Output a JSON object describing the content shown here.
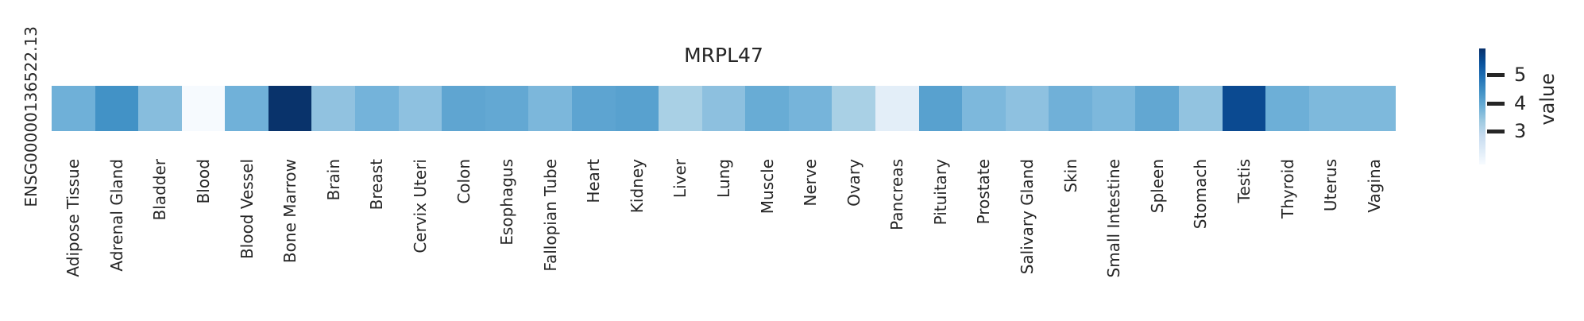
{
  "chart_data": {
    "type": "heatmap",
    "title": "MRPL47",
    "rows": [
      "ENSG00000136522.13"
    ],
    "categories": [
      "Adipose Tissue",
      "Adrenal Gland",
      "Bladder",
      "Blood",
      "Blood Vessel",
      "Bone Marrow",
      "Brain",
      "Breast",
      "Cervix Uteri",
      "Colon",
      "Esophagus",
      "Fallopian Tube",
      "Heart",
      "Kidney",
      "Liver",
      "Lung",
      "Muscle",
      "Nerve",
      "Ovary",
      "Pancreas",
      "Pituitary",
      "Prostate",
      "Salivary Gland",
      "Skin",
      "Small Intestine",
      "Spleen",
      "Stomach",
      "Testis",
      "Thyroid",
      "Uterus",
      "Vagina"
    ],
    "values": [
      [
        3.8,
        4.4,
        3.6,
        1.8,
        3.8,
        5.9,
        3.4,
        3.7,
        3.5,
        4.0,
        4.0,
        3.7,
        4.1,
        4.1,
        3.2,
        3.5,
        3.9,
        3.7,
        3.2,
        2.2,
        4.1,
        3.7,
        3.5,
        3.8,
        3.7,
        4.0,
        3.4,
        5.2,
        3.9,
        3.6,
        3.6
      ]
    ],
    "cell_colors": [
      "#6fb0d8",
      "#4292c6",
      "#87bddd",
      "#f6fafe",
      "#70b1d9",
      "#09336b",
      "#91c2e0",
      "#74b3da",
      "#8ec1e0",
      "#5fa5d1",
      "#63a8d3",
      "#7cb7db",
      "#5da4d1",
      "#58a1cf",
      "#a9d0e5",
      "#8dc0df",
      "#68acd5",
      "#76b4da",
      "#a9d0e5",
      "#e3eef8",
      "#58a1cf",
      "#7db8dc",
      "#8ec1e0",
      "#70b0d8",
      "#7db8dc",
      "#62a7d2",
      "#92c3e0",
      "#0b4a91",
      "#6dafd7",
      "#7eb9dc",
      "#7eb9dc"
    ],
    "colormap": "Blues",
    "scale_range": [
      1.8,
      5.9
    ],
    "grid": false,
    "colorbar": {
      "label": "value",
      "position": "right",
      "tick_labels": [
        "5",
        "4",
        "3"
      ],
      "tick_values": [
        5,
        4,
        3
      ],
      "gradient_top": "#08306b",
      "gradient_bottom": "#f7fbff"
    }
  },
  "colors": {
    "background": "#ffffff",
    "text": "#262626"
  }
}
